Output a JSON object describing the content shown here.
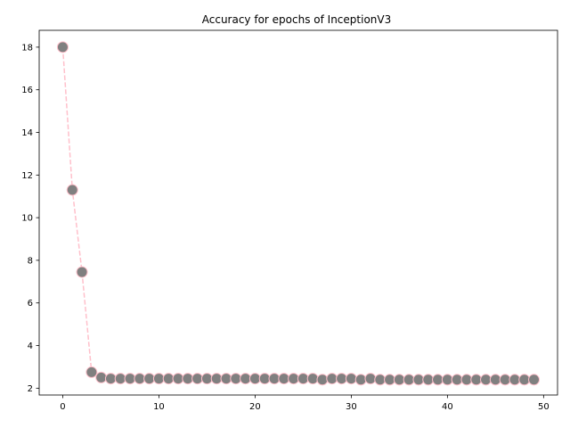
{
  "chart_data": {
    "type": "line",
    "title": "Accuracy for epochs of InceptionV3",
    "xlabel": "",
    "ylabel": "",
    "xlim": [
      -2.45,
      51.45
    ],
    "ylim": [
      1.68,
      18.79
    ],
    "xticks": [
      0,
      10,
      20,
      30,
      40,
      50
    ],
    "yticks": [
      2,
      4,
      6,
      8,
      10,
      12,
      14,
      16,
      18
    ],
    "grid": false,
    "legend": "none",
    "series": [
      {
        "line_style": "dashed",
        "line_color": "#ffc0cb",
        "marker": "circle",
        "marker_face_color": "#808080",
        "marker_edge_color": "#ffc0cb",
        "x": [
          0,
          1,
          2,
          3,
          4,
          5,
          6,
          7,
          8,
          9,
          10,
          11,
          12,
          13,
          14,
          15,
          16,
          17,
          18,
          19,
          20,
          21,
          22,
          23,
          24,
          25,
          26,
          27,
          28,
          29,
          30,
          31,
          32,
          33,
          34,
          35,
          36,
          37,
          38,
          39,
          40,
          41,
          42,
          43,
          44,
          45,
          46,
          47,
          48,
          49
        ],
        "y": [
          18.0,
          11.3,
          7.45,
          2.75,
          2.5,
          2.45,
          2.45,
          2.45,
          2.45,
          2.45,
          2.45,
          2.45,
          2.45,
          2.45,
          2.45,
          2.45,
          2.45,
          2.45,
          2.45,
          2.45,
          2.45,
          2.45,
          2.45,
          2.45,
          2.45,
          2.45,
          2.45,
          2.4,
          2.45,
          2.45,
          2.45,
          2.4,
          2.45,
          2.4,
          2.4,
          2.4,
          2.4,
          2.4,
          2.4,
          2.4,
          2.4,
          2.4,
          2.4,
          2.4,
          2.4,
          2.4,
          2.4,
          2.4,
          2.4,
          2.4
        ]
      }
    ]
  }
}
